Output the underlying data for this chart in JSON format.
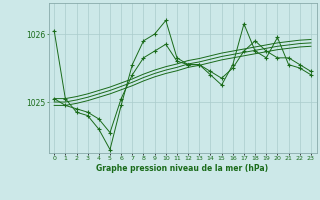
{
  "title": "Graphe pression niveau de la mer (hPa)",
  "background_color": "#cce8e8",
  "grid_color": "#aacccc",
  "line_color": "#1a6b1a",
  "text_color": "#1a6b1a",
  "x_labels": [
    "0",
    "1",
    "2",
    "3",
    "4",
    "5",
    "6",
    "7",
    "8",
    "9",
    "10",
    "11",
    "12",
    "13",
    "14",
    "15",
    "16",
    "17",
    "18",
    "19",
    "20",
    "21",
    "22",
    "23"
  ],
  "yticks": [
    1025,
    1026
  ],
  "ylim": [
    1024.25,
    1026.45
  ],
  "xlim": [
    -0.5,
    23.5
  ],
  "series": {
    "zigzag": [
      1026.05,
      1025.05,
      1024.85,
      1024.8,
      1024.6,
      1024.3,
      1024.95,
      1025.55,
      1025.9,
      1026.0,
      1026.2,
      1025.65,
      1025.55,
      1025.55,
      1025.4,
      1025.25,
      1025.55,
      1026.15,
      1025.75,
      1025.65,
      1025.95,
      1025.55,
      1025.5,
      1025.4
    ],
    "jagged": [
      1025.05,
      1024.95,
      1024.9,
      1024.85,
      1024.75,
      1024.55,
      1025.05,
      1025.4,
      1025.65,
      1025.75,
      1025.85,
      1025.6,
      1025.55,
      1025.55,
      1025.45,
      1025.35,
      1025.5,
      1025.75,
      1025.9,
      1025.75,
      1025.65,
      1025.65,
      1025.55,
      1025.45
    ],
    "smooth1": [
      1025.05,
      1025.05,
      1025.08,
      1025.12,
      1025.17,
      1025.22,
      1025.28,
      1025.34,
      1025.41,
      1025.47,
      1025.52,
      1025.56,
      1025.61,
      1025.64,
      1025.68,
      1025.72,
      1025.75,
      1025.78,
      1025.81,
      1025.84,
      1025.87,
      1025.89,
      1025.91,
      1025.92
    ],
    "smooth2": [
      1025.0,
      1025.0,
      1025.03,
      1025.07,
      1025.12,
      1025.17,
      1025.23,
      1025.29,
      1025.36,
      1025.42,
      1025.47,
      1025.51,
      1025.56,
      1025.59,
      1025.63,
      1025.67,
      1025.7,
      1025.73,
      1025.76,
      1025.79,
      1025.82,
      1025.84,
      1025.86,
      1025.87
    ],
    "smooth3": [
      1024.95,
      1024.95,
      1024.98,
      1025.02,
      1025.07,
      1025.12,
      1025.18,
      1025.24,
      1025.31,
      1025.37,
      1025.42,
      1025.46,
      1025.51,
      1025.54,
      1025.58,
      1025.62,
      1025.65,
      1025.68,
      1025.71,
      1025.74,
      1025.77,
      1025.79,
      1025.81,
      1025.82
    ]
  }
}
